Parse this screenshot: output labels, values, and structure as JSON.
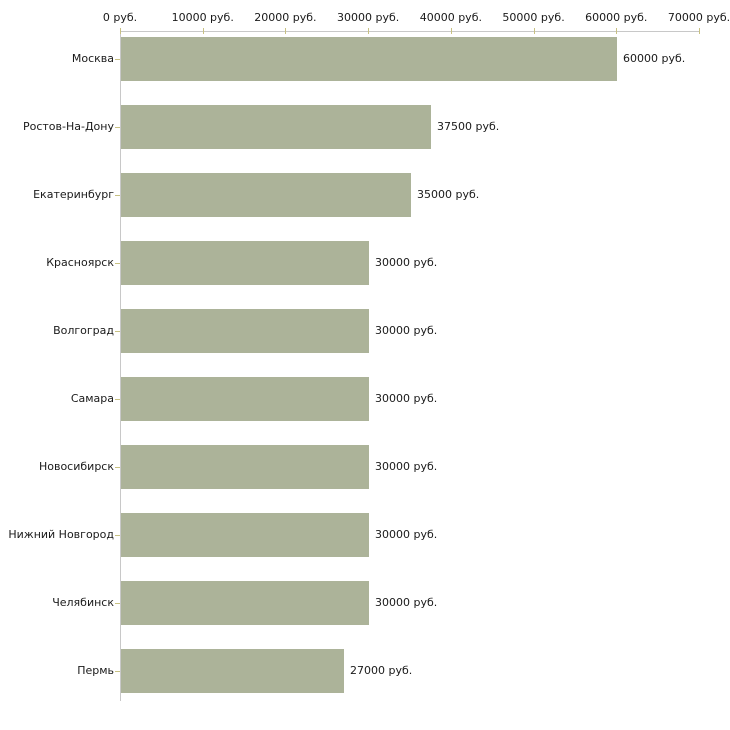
{
  "chart_data": {
    "type": "bar",
    "orientation": "horizontal",
    "title": "",
    "xlabel": "",
    "ylabel": "",
    "categories": [
      "Москва",
      "Ростов-На-Дону",
      "Екатеринбург",
      "Красноярск",
      "Волгоград",
      "Самара",
      "Новосибирск",
      "Нижний Новгород",
      "Челябинск",
      "Пермь"
    ],
    "values": [
      60000,
      37500,
      35000,
      30000,
      30000,
      30000,
      30000,
      30000,
      30000,
      27000
    ],
    "value_labels": [
      "60000 руб.",
      "37500 руб.",
      "35000 руб.",
      "30000 руб.",
      "30000 руб.",
      "30000 руб.",
      "30000 руб.",
      "30000 руб.",
      "30000 руб.",
      "27000 руб."
    ],
    "x_axis": {
      "position": "top",
      "min": 0,
      "max": 70000,
      "ticks": [
        0,
        10000,
        20000,
        30000,
        40000,
        50000,
        60000,
        70000
      ],
      "tick_labels": [
        "0 руб.",
        "10000 руб.",
        "20000 руб.",
        "30000 руб.",
        "40000 руб.",
        "50000 руб.",
        "60000 руб.",
        "70000 руб."
      ]
    },
    "grid": false,
    "legend": false,
    "colors": {
      "bar": "#acb399",
      "axis_line": "#c8c8c8",
      "tick_mark": "#c8c182",
      "text": "#1a1a1a",
      "background": "#ffffff"
    }
  }
}
